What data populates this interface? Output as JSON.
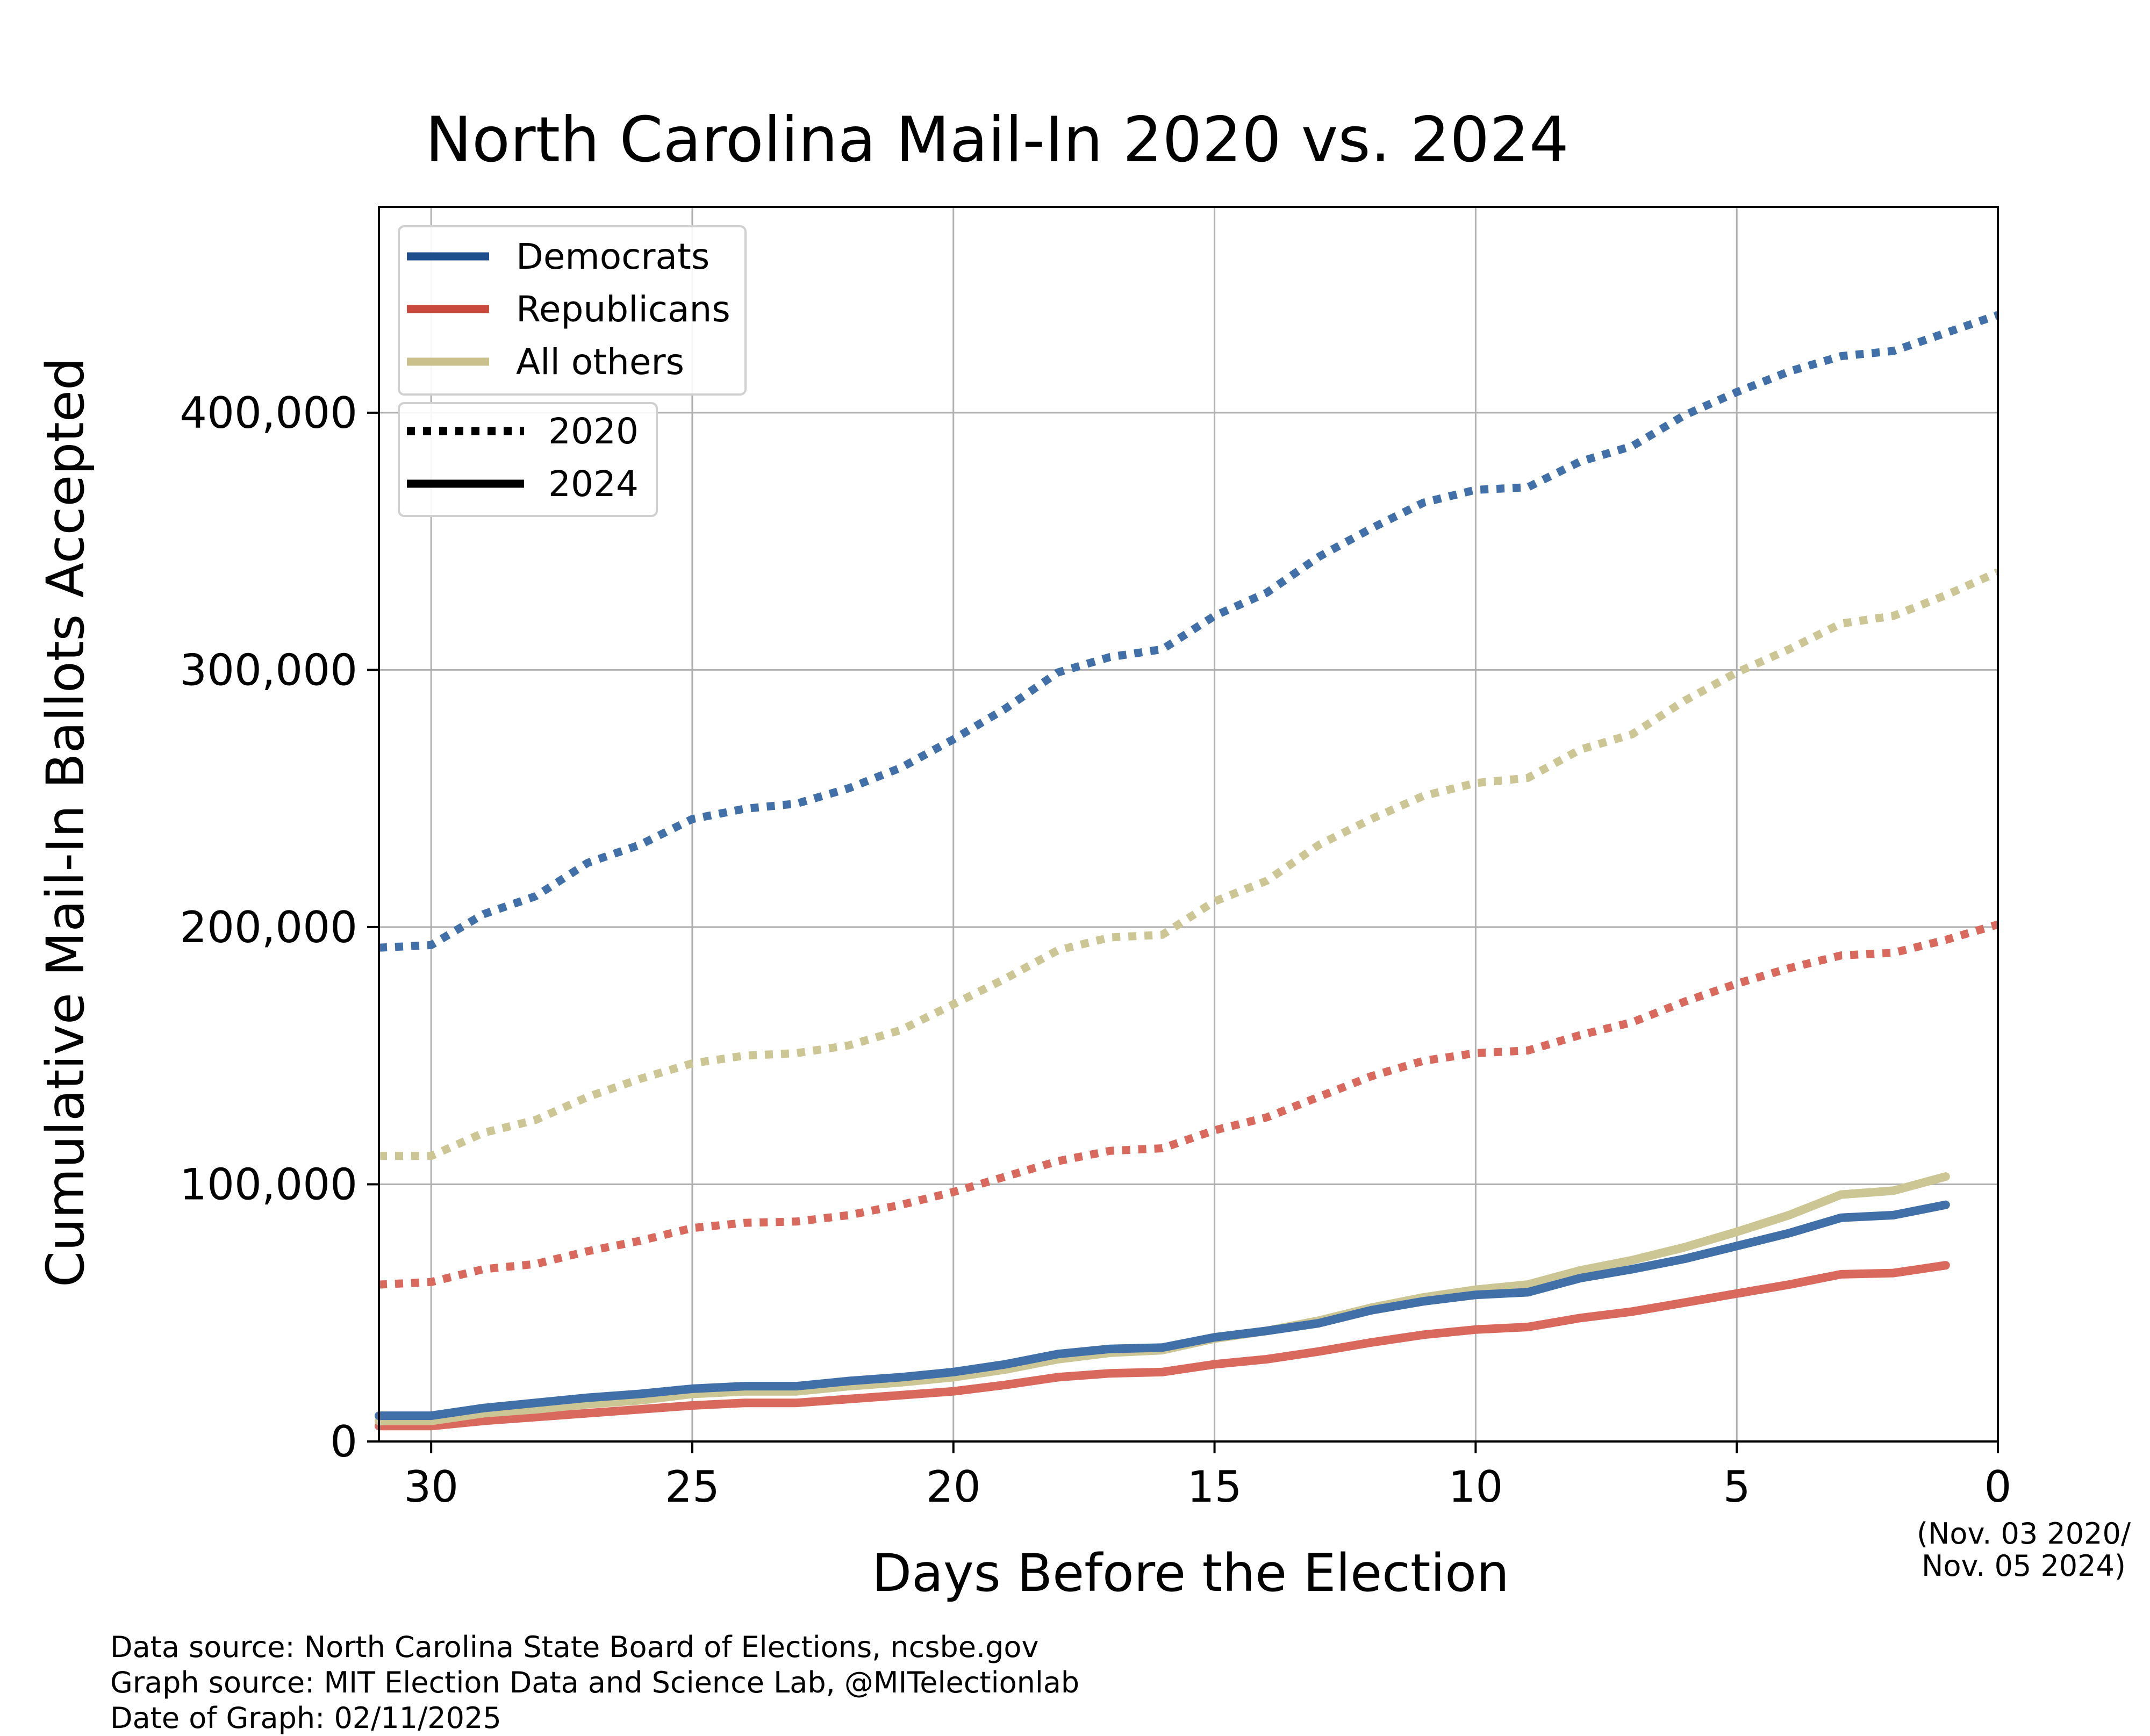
{
  "chart_data": {
    "type": "line",
    "title": "North Carolina Mail-In 2020 vs. 2024",
    "xlabel": "Days Before the Election",
    "ylabel": "Cumulative Mail-In Ballots Accepted",
    "x_end_note": [
      "(Nov. 03 2020/",
      "Nov. 05 2024)"
    ],
    "xlim": [
      31,
      0
    ],
    "ylim": [
      0,
      480000
    ],
    "x_ticks": [
      30,
      25,
      20,
      15,
      10,
      5,
      0
    ],
    "y_ticks": [
      0,
      100000,
      200000,
      300000,
      400000
    ],
    "y_tick_labels": [
      "0",
      "100,000",
      "200,000",
      "300,000",
      "400,000"
    ],
    "grid": true,
    "legend_party": [
      {
        "label": "Democrats",
        "color": "#1f4e8c"
      },
      {
        "label": "Republicans",
        "color": "#c94a3d"
      },
      {
        "label": "All others",
        "color": "#c9c08c"
      }
    ],
    "legend_year": [
      {
        "label": "2020",
        "style": "dotted"
      },
      {
        "label": "2024",
        "style": "solid"
      }
    ],
    "x": [
      31,
      30,
      29,
      28,
      27,
      26,
      25,
      24,
      23,
      22,
      21,
      20,
      19,
      18,
      17,
      16,
      15,
      14,
      13,
      12,
      11,
      10,
      9,
      8,
      7,
      6,
      5,
      4,
      3,
      2,
      1,
      0
    ],
    "series": [
      {
        "name": "Democrats",
        "year": "2020",
        "style": "dotted",
        "color": "#4170a8",
        "values": [
          192000,
          193000,
          205000,
          212000,
          225000,
          232000,
          242000,
          246000,
          248000,
          254000,
          262000,
          273000,
          285000,
          299000,
          305000,
          308000,
          321000,
          330000,
          344000,
          355000,
          365000,
          370000,
          371000,
          381000,
          387000,
          399000,
          408000,
          416000,
          422000,
          424000,
          431000,
          438000
        ]
      },
      {
        "name": "Republicans",
        "year": "2020",
        "style": "dotted",
        "color": "#d9685d",
        "values": [
          61000,
          62000,
          67000,
          69000,
          74000,
          78000,
          83000,
          85000,
          85500,
          88000,
          92000,
          97000,
          103000,
          109000,
          113000,
          114000,
          121000,
          126000,
          134000,
          142000,
          148000,
          151000,
          152000,
          158000,
          163000,
          171000,
          178000,
          184000,
          189000,
          190000,
          195000,
          201000
        ]
      },
      {
        "name": "All others",
        "year": "2020",
        "style": "dotted",
        "color": "#ccc594",
        "values": [
          111000,
          111000,
          120000,
          125000,
          134000,
          141000,
          147000,
          150000,
          151000,
          154000,
          160000,
          170000,
          180000,
          191000,
          196000,
          197000,
          210000,
          218000,
          232000,
          242000,
          251000,
          256000,
          258000,
          269000,
          275000,
          288000,
          299000,
          308000,
          318000,
          321000,
          329000,
          338000
        ]
      },
      {
        "name": "Democrats",
        "year": "2024",
        "style": "solid",
        "color": "#4170a8",
        "values": [
          10000,
          10000,
          13000,
          15000,
          17000,
          18500,
          20500,
          21500,
          21500,
          23500,
          25000,
          27000,
          30000,
          34000,
          36000,
          36500,
          40500,
          43000,
          46000,
          51000,
          54500,
          57000,
          58000,
          63500,
          67000,
          71000,
          76000,
          81000,
          87000,
          88000,
          92000,
          null
        ]
      },
      {
        "name": "Republicans",
        "year": "2024",
        "style": "solid",
        "color": "#d9685d",
        "values": [
          6000,
          6000,
          8000,
          9500,
          11000,
          12500,
          14000,
          15000,
          15000,
          16500,
          18000,
          19500,
          22000,
          25000,
          26500,
          27000,
          30000,
          32000,
          35000,
          38500,
          41500,
          43500,
          44500,
          48000,
          50500,
          54000,
          57500,
          61000,
          65000,
          65500,
          68500,
          null
        ]
      },
      {
        "name": "All others",
        "year": "2024",
        "style": "solid",
        "color": "#ccc594",
        "values": [
          8000,
          8000,
          11000,
          12500,
          14500,
          16000,
          18500,
          19500,
          19500,
          21500,
          23000,
          25000,
          28000,
          32000,
          34500,
          35500,
          40000,
          43000,
          47000,
          52000,
          56000,
          59000,
          61000,
          66500,
          70500,
          75500,
          81500,
          88000,
          96000,
          97500,
          103000,
          null
        ]
      }
    ]
  },
  "footer": {
    "line1": "Data source: North Carolina State Board of Elections, ncsbe.gov",
    "line2": "Graph source: MIT Election Data and Science Lab, @MITelectionlab",
    "line3": "Date of Graph: 02/11/2025"
  }
}
